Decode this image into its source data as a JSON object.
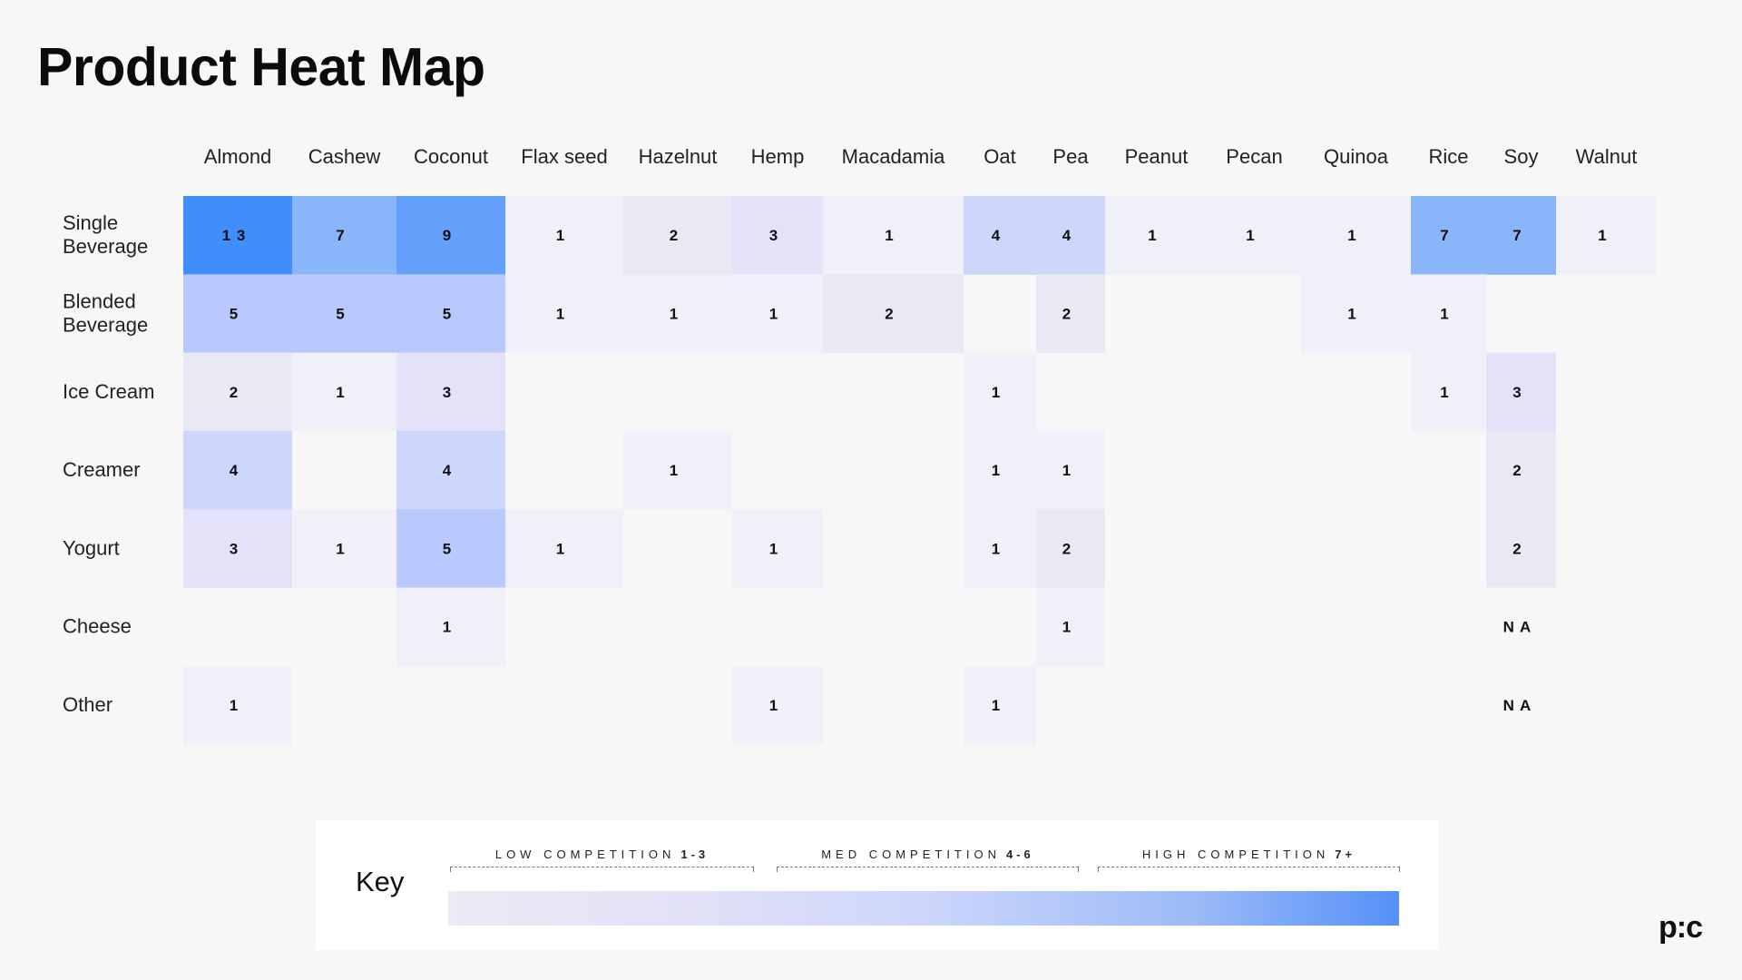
{
  "page": {
    "title": "Product Heat Map",
    "logo_text": "p:c"
  },
  "chart_data": {
    "type": "heatmap",
    "title": "Product Heat Map",
    "columns": [
      "Almond",
      "Cashew",
      "Coconut",
      "Flax seed",
      "Hazelnut",
      "Hemp",
      "Macadamia",
      "Oat",
      "Pea",
      "Peanut",
      "Pecan",
      "Quinoa",
      "Rice",
      "Soy",
      "Walnut"
    ],
    "rows": [
      "Single\nBeverage",
      "Blended\nBeverage",
      "Ice Cream",
      "Creamer",
      "Yogurt",
      "Cheese",
      "Other"
    ],
    "values": [
      [
        13,
        7,
        9,
        1,
        2,
        3,
        1,
        4,
        4,
        1,
        1,
        1,
        7,
        7,
        1
      ],
      [
        5,
        5,
        5,
        1,
        1,
        1,
        2,
        null,
        2,
        null,
        null,
        1,
        1,
        null,
        null
      ],
      [
        2,
        1,
        3,
        null,
        null,
        null,
        null,
        1,
        null,
        null,
        null,
        null,
        1,
        3,
        null
      ],
      [
        4,
        null,
        4,
        null,
        1,
        null,
        null,
        1,
        1,
        null,
        null,
        null,
        null,
        2,
        null
      ],
      [
        3,
        1,
        5,
        1,
        null,
        1,
        null,
        1,
        2,
        null,
        null,
        null,
        null,
        2,
        null
      ],
      [
        null,
        null,
        1,
        null,
        null,
        null,
        null,
        null,
        1,
        null,
        null,
        null,
        null,
        "NA",
        null
      ],
      [
        1,
        null,
        null,
        null,
        null,
        1,
        null,
        1,
        null,
        null,
        null,
        null,
        null,
        "NA",
        null
      ]
    ],
    "value_labels": {
      "13": "1 3",
      "NA": "N A"
    },
    "legend": {
      "title": "Key",
      "bands": [
        {
          "label": "LOW COMPETITION",
          "range": "1-3"
        },
        {
          "label": "MED COMPETITION",
          "range": "4-6"
        },
        {
          "label": "HIGH COMPETITION",
          "range": "7+"
        }
      ]
    },
    "colors": {
      "1": "#f0f0f8",
      "2": "#e9e9f6",
      "3": "#e3e2f9",
      "4": "#cdd6fb",
      "5": "#b9c8fd",
      "7": "#89b6fa",
      "9": "#62a0fb",
      "13": "#3f8efc",
      "NA": "#f7f7f7"
    }
  }
}
